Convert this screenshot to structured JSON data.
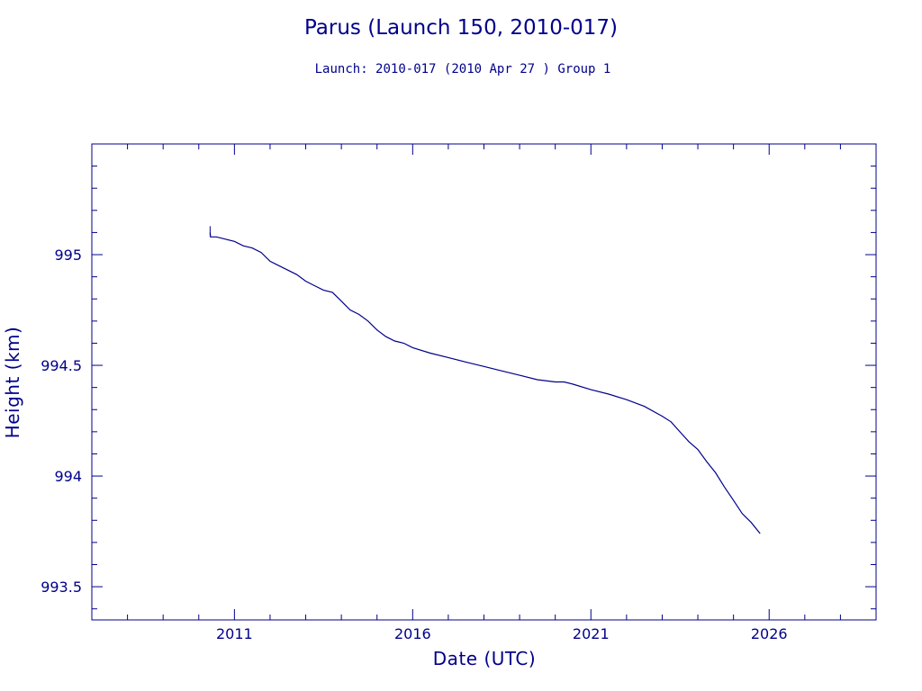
{
  "chart_data": {
    "type": "line",
    "title": "Parus (Launch 150, 2010-017)",
    "subtitle": "Launch: 2010-017  (2010 Apr 27 )  Group 1",
    "xlabel": "Date (UTC)",
    "ylabel": "Height (km)",
    "xlim": [
      "2007-01-01",
      "2029-01-01"
    ],
    "ylim": [
      993.35,
      995.5
    ],
    "x_ticks": [
      "2011",
      "2016",
      "2021",
      "2026"
    ],
    "y_ticks": [
      "993.5",
      "994",
      "994.5",
      "995"
    ],
    "grid": false,
    "colors": {
      "line": "#00008b",
      "frame": "#00008b",
      "text": "#00008b"
    },
    "series": [
      {
        "x": [
          "2010-04-27",
          "2010-05-01",
          "2010-07-01",
          "2010-10-01",
          "2011-01-01",
          "2011-04-01",
          "2011-07-01",
          "2011-10-01",
          "2012-01-01",
          "2012-04-01",
          "2012-07-01",
          "2012-10-01",
          "2013-01-01",
          "2013-04-01",
          "2013-07-01",
          "2013-10-01",
          "2014-01-01",
          "2014-04-01",
          "2014-07-01",
          "2014-10-01",
          "2015-01-01",
          "2015-04-01",
          "2015-07-01",
          "2015-10-01",
          "2016-01-01",
          "2016-07-01",
          "2017-01-01",
          "2017-07-01",
          "2018-01-01",
          "2018-07-01",
          "2019-01-01",
          "2019-07-01",
          "2020-01-01",
          "2020-04-01",
          "2020-07-01",
          "2021-01-01",
          "2021-07-01",
          "2022-01-01",
          "2022-07-01",
          "2023-01-01",
          "2023-04-01",
          "2023-07-01",
          "2023-10-01",
          "2024-01-01",
          "2024-04-01",
          "2024-07-01",
          "2024-10-01",
          "2025-01-01",
          "2025-04-01",
          "2025-07-01",
          "2025-10-01"
        ],
        "y": [
          995.1,
          995.08,
          995.08,
          995.07,
          995.06,
          995.04,
          995.03,
          995.01,
          994.97,
          994.95,
          994.93,
          994.91,
          994.88,
          994.86,
          994.84,
          994.83,
          994.79,
          994.75,
          994.73,
          994.7,
          994.66,
          994.63,
          994.61,
          994.6,
          994.58,
          994.555,
          994.535,
          994.515,
          994.495,
          994.475,
          994.455,
          994.435,
          994.425,
          994.425,
          994.415,
          994.39,
          994.37,
          994.345,
          994.315,
          994.27,
          994.245,
          994.2,
          994.155,
          994.12,
          994.065,
          994.015,
          993.95,
          993.89,
          993.83,
          993.79,
          993.74
        ]
      }
    ]
  }
}
